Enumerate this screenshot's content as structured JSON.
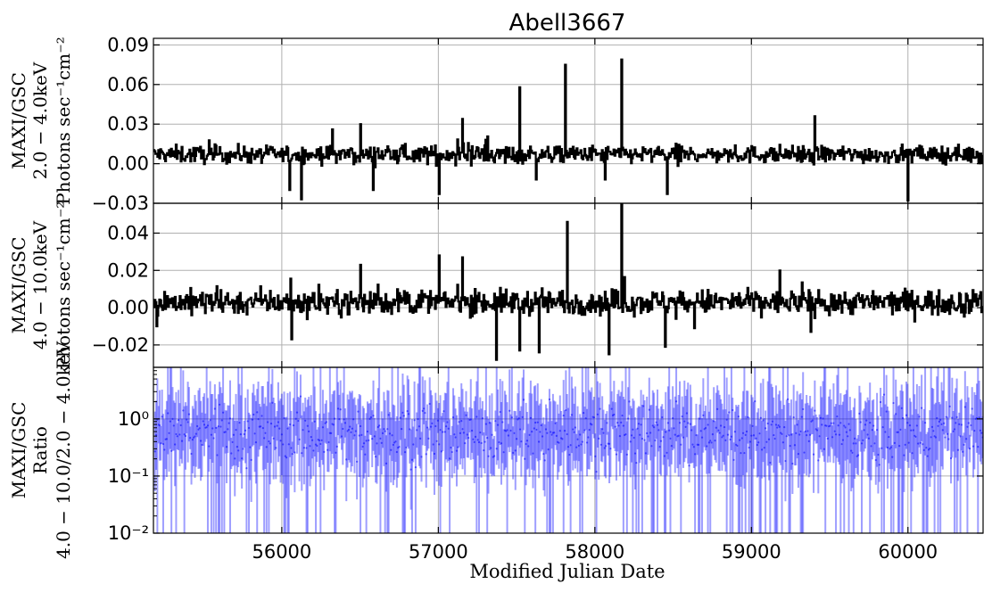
{
  "chart_data": {
    "title": "Abell3667",
    "xlabel": "Modified Julian Date",
    "xlim": [
      55180,
      60480
    ],
    "xticks": [
      56000,
      57000,
      58000,
      59000,
      60000
    ],
    "xtick_labels": [
      "56000",
      "57000",
      "58000",
      "59000",
      "60000"
    ],
    "grid": true,
    "panels": [
      {
        "type": "line",
        "style": "step",
        "ylabel": [
          "MAXI/GSC",
          "2.0 − 4.0keV",
          "Photons sec⁻¹cm⁻²"
        ],
        "ylim": [
          -0.03,
          0.095
        ],
        "yticks": [
          "0.09",
          "0.06",
          "0.03",
          "0.00",
          "−0.03"
        ],
        "ytick_values": [
          0.09,
          0.06,
          0.03,
          0.0,
          -0.03
        ],
        "color": "#000000",
        "baseline": 0.007,
        "noise": 0.006,
        "spikes": [
          {
            "x": 56050,
            "y": -0.02
          },
          {
            "x": 56120,
            "y": -0.027
          },
          {
            "x": 56320,
            "y": 0.026
          },
          {
            "x": 56500,
            "y": 0.03
          },
          {
            "x": 56580,
            "y": -0.02
          },
          {
            "x": 57000,
            "y": -0.023
          },
          {
            "x": 57150,
            "y": 0.034
          },
          {
            "x": 57520,
            "y": 0.058
          },
          {
            "x": 57620,
            "y": -0.012
          },
          {
            "x": 57810,
            "y": 0.075
          },
          {
            "x": 58060,
            "y": -0.012
          },
          {
            "x": 58170,
            "y": 0.079
          },
          {
            "x": 58460,
            "y": -0.023
          },
          {
            "x": 59400,
            "y": 0.036
          },
          {
            "x": 60000,
            "y": -0.028
          }
        ]
      },
      {
        "type": "line",
        "style": "step",
        "ylabel": [
          "MAXI/GSC",
          "4.0 − 10.0keV",
          "Photons sec⁻¹cm⁻²"
        ],
        "ylim": [
          -0.032,
          0.056
        ],
        "yticks": [
          "0.04",
          "0.02",
          "0.00",
          "−0.02"
        ],
        "ytick_values": [
          0.04,
          0.02,
          0.0,
          -0.02
        ],
        "color": "#000000",
        "baseline": 0.003,
        "noise": 0.006,
        "spikes": [
          {
            "x": 55200,
            "y": -0.01
          },
          {
            "x": 56060,
            "y": -0.017
          },
          {
            "x": 56500,
            "y": 0.023
          },
          {
            "x": 57000,
            "y": 0.028
          },
          {
            "x": 57150,
            "y": 0.027
          },
          {
            "x": 57370,
            "y": -0.028
          },
          {
            "x": 57520,
            "y": -0.023
          },
          {
            "x": 57640,
            "y": -0.024
          },
          {
            "x": 57820,
            "y": 0.046
          },
          {
            "x": 58090,
            "y": -0.025
          },
          {
            "x": 58170,
            "y": 0.056
          },
          {
            "x": 58450,
            "y": -0.021
          },
          {
            "x": 59180,
            "y": 0.02
          },
          {
            "x": 59380,
            "y": -0.013
          }
        ]
      },
      {
        "type": "line",
        "style": "errorbar",
        "yscale": "log",
        "ylabel": [
          "MAXI/GSC",
          "Ratio",
          "4.0 − 10.0/2.0 − 4.0keV"
        ],
        "ylim": [
          0.01,
          8.0
        ],
        "yticks": [
          "10⁰",
          "10⁻¹",
          "10⁻²"
        ],
        "ytick_values": [
          1.0,
          0.1,
          0.01
        ],
        "color": "#0000ff",
        "baseline": 0.55
      }
    ]
  }
}
